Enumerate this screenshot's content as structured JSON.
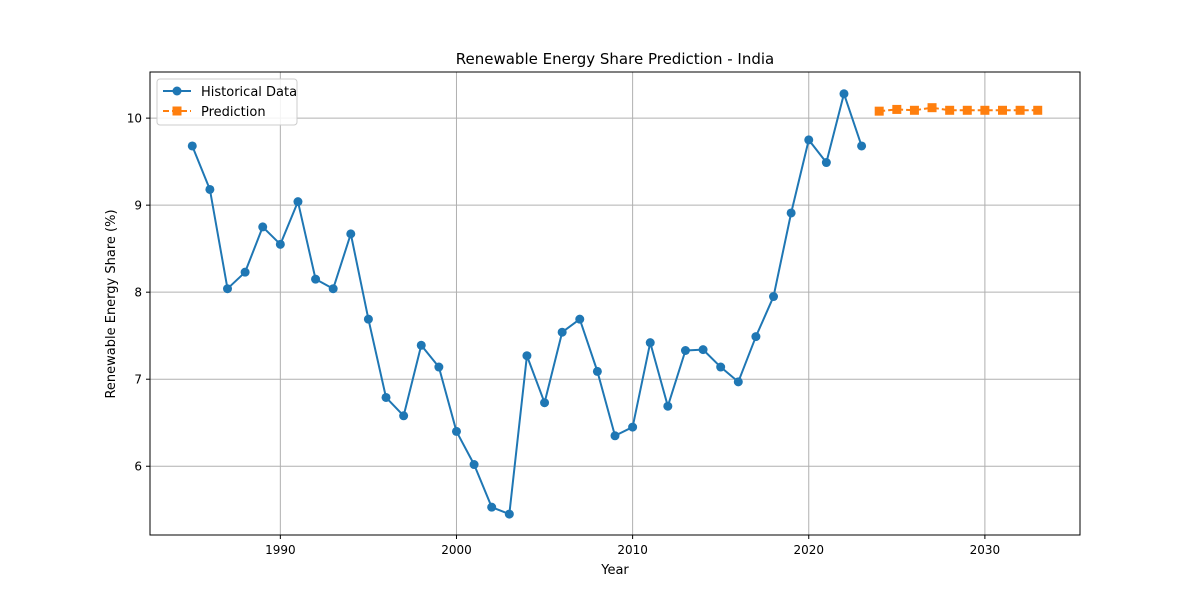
{
  "chart_data": {
    "type": "line",
    "title": "Renewable Energy Share Prediction - India",
    "xlabel": "Year",
    "ylabel": "Renewable Energy Share (%)",
    "xlim": [
      1982.6,
      2035.4
    ],
    "ylim": [
      5.21,
      10.53
    ],
    "xticks": [
      1990,
      2000,
      2010,
      2020,
      2030
    ],
    "yticks": [
      6,
      7,
      8,
      9,
      10
    ],
    "grid": true,
    "legend": "top-left",
    "series": [
      {
        "name": "Historical Data",
        "color": "#1f77b4",
        "marker": "circle",
        "linestyle": "solid",
        "x": [
          1985,
          1986,
          1987,
          1988,
          1989,
          1990,
          1991,
          1992,
          1993,
          1994,
          1995,
          1996,
          1997,
          1998,
          1999,
          2000,
          2001,
          2002,
          2003,
          2004,
          2005,
          2006,
          2007,
          2008,
          2009,
          2010,
          2011,
          2012,
          2013,
          2014,
          2015,
          2016,
          2017,
          2018,
          2019,
          2020,
          2021,
          2022,
          2023
        ],
        "y": [
          9.68,
          9.18,
          8.04,
          8.23,
          8.75,
          8.55,
          9.04,
          8.15,
          8.04,
          8.67,
          7.69,
          6.79,
          6.58,
          7.39,
          7.14,
          6.4,
          6.02,
          5.53,
          5.45,
          7.27,
          6.73,
          7.54,
          7.69,
          7.09,
          6.35,
          6.45,
          7.42,
          6.69,
          7.33,
          7.34,
          7.14,
          6.97,
          7.49,
          7.95,
          8.91,
          9.75,
          9.49,
          10.28,
          9.68
        ]
      },
      {
        "name": "Prediction",
        "color": "#ff7f0e",
        "marker": "square",
        "linestyle": "dashed",
        "x": [
          2024,
          2025,
          2026,
          2027,
          2028,
          2029,
          2030,
          2031,
          2032,
          2033
        ],
        "y": [
          10.08,
          10.1,
          10.09,
          10.12,
          10.09,
          10.09,
          10.09,
          10.09,
          10.09,
          10.09
        ]
      }
    ]
  }
}
